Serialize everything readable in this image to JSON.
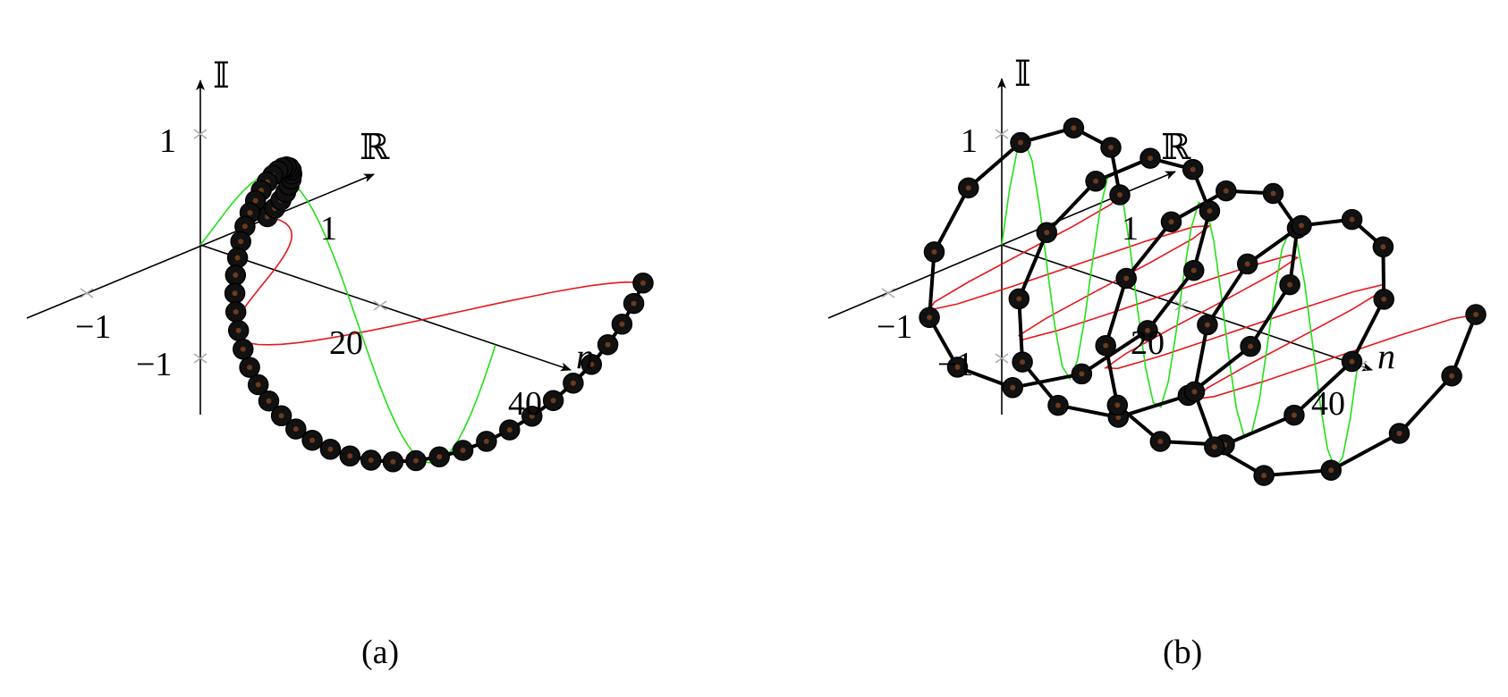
{
  "panels": [
    {
      "id": "a",
      "caption": "(a)",
      "axis_labels": {
        "imag": "𝕀",
        "real": "ℝ",
        "n": "n"
      },
      "tick_labels": {
        "imag_pos": "1",
        "imag_neg": "−1",
        "real_pos": "1",
        "real_neg": "−1",
        "n_20": "20",
        "n_40": "40"
      },
      "curve": {
        "type": "decaying-helix",
        "points": 48,
        "turns": 1,
        "real_curve_color": "#e8161b",
        "imag_curve_color": "#22e016",
        "point_color": "#000000"
      }
    },
    {
      "id": "b",
      "caption": "(b)",
      "axis_labels": {
        "imag": "𝕀",
        "real": "ℝ",
        "n": "n"
      },
      "tick_labels": {
        "imag_pos": "1",
        "imag_neg": "−1",
        "real_pos": "1",
        "real_neg": "−1",
        "n_20": "20",
        "n_40": "40"
      },
      "curve": {
        "type": "helix",
        "points": 48,
        "turns": 4,
        "real_curve_color": "#e8161b",
        "imag_curve_color": "#22e016",
        "point_color": "#000000"
      }
    }
  ]
}
